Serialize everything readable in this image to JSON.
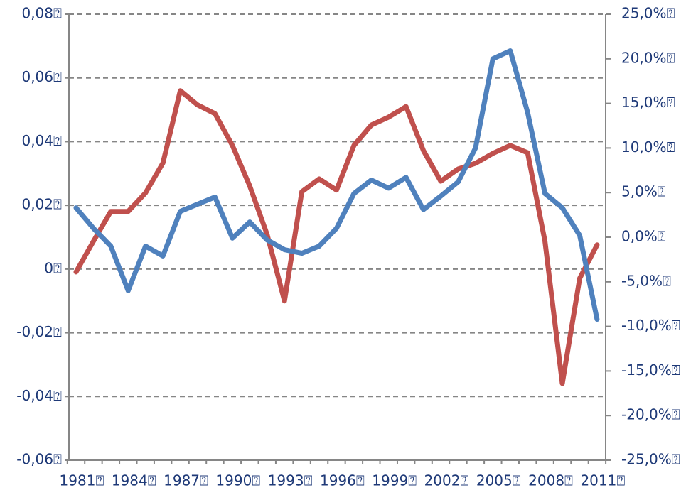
{
  "chart_data": {
    "type": "line",
    "categories": [
      "1981⍰",
      null,
      null,
      "1984⍰",
      null,
      null,
      "1987⍰",
      null,
      null,
      "1990⍰",
      null,
      null,
      "1993⍰",
      null,
      null,
      "1996⍰",
      null,
      null,
      "1999⍰",
      null,
      null,
      "2002⍰",
      null,
      null,
      "2005⍰",
      null,
      null,
      "2008⍰",
      null,
      null,
      "2011⍰"
    ],
    "series": [
      {
        "color": "#c0504d",
        "values": [
          -0.0009,
          0.0087,
          0.0181,
          0.0181,
          0.0239,
          0.0333,
          0.056,
          0.0515,
          0.0488,
          0.0388,
          0.0261,
          0.0109,
          -0.01,
          0.0243,
          0.0283,
          0.0248,
          0.0388,
          0.0452,
          0.0477,
          0.051,
          0.0372,
          0.0276,
          0.0314,
          0.0332,
          0.0363,
          0.0388,
          0.0365,
          0.0087,
          -0.0359,
          -0.0029,
          0.0076
        ]
      },
      {
        "color": "#4f81bd",
        "axis": "y2",
        "values": [
          3.3,
          1.0,
          -1.0,
          -6.0,
          -1.0,
          -2.1,
          2.9,
          3.7,
          4.5,
          -0.1,
          1.7,
          -0.3,
          -1.4,
          -1.8,
          -1.0,
          1.0,
          4.9,
          6.4,
          5.5,
          6.7,
          3.1,
          4.6,
          6.2,
          10.0,
          20.0,
          20.9,
          14.0,
          4.9,
          3.3,
          0.2,
          -9.2
        ]
      }
    ],
    "ylim": [
      -0.06,
      0.08
    ],
    "yticks": [
      {
        "value": -0.06,
        "label": "-0,06⍰"
      },
      {
        "value": -0.04,
        "label": "-0,04⍰"
      },
      {
        "value": -0.02,
        "label": "-0,02⍰"
      },
      {
        "value": 0,
        "label": "0⍰"
      },
      {
        "value": 0.02,
        "label": "0,02⍰"
      },
      {
        "value": 0.04,
        "label": "0,04⍰"
      },
      {
        "value": 0.06,
        "label": "0,06⍰"
      },
      {
        "value": 0.08,
        "label": "0,08⍰"
      }
    ],
    "y2lim": [
      -25,
      25
    ],
    "y2ticks": [
      {
        "value": -25,
        "label": "-25,0%⍰"
      },
      {
        "value": -20,
        "label": "-20,0%⍰"
      },
      {
        "value": -15,
        "label": "-15,0%⍰"
      },
      {
        "value": -10,
        "label": "-10,0%⍰"
      },
      {
        "value": -5,
        "label": "-5,0%⍰"
      },
      {
        "value": 0,
        "label": "0,0%⍰"
      },
      {
        "value": 5,
        "label": "5,0%⍰"
      },
      {
        "value": 10,
        "label": "10,0%⍰"
      },
      {
        "value": 15,
        "label": "15,0%⍰"
      },
      {
        "value": 20,
        "label": "20,0%⍰"
      },
      {
        "value": 25,
        "label": "25,0%⍰"
      }
    ],
    "grid": true
  }
}
